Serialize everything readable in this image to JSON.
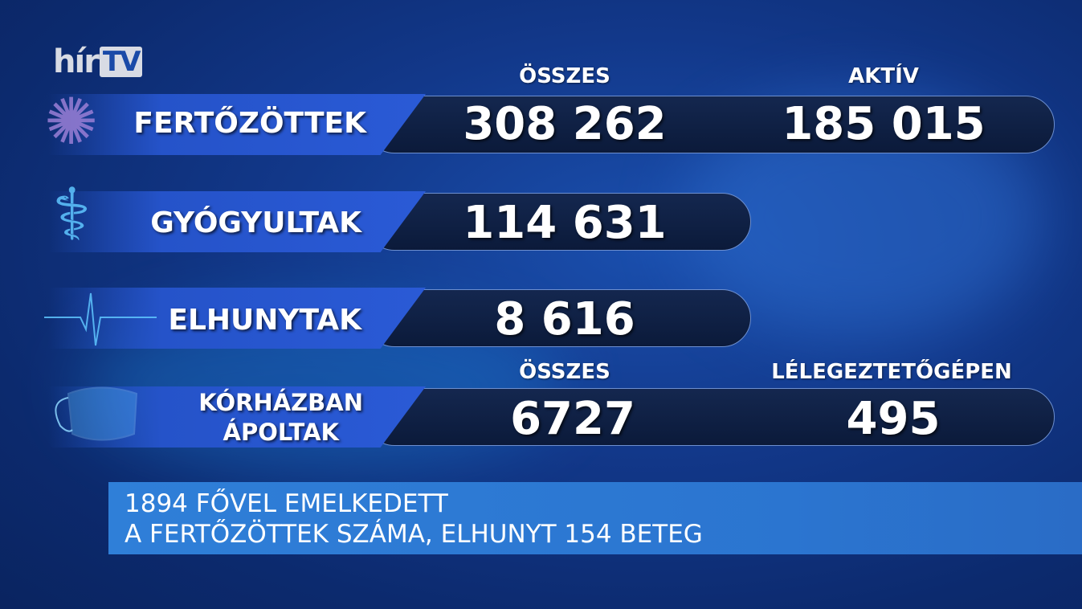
{
  "logo": {
    "text_main": "hír",
    "text_tv": "TV"
  },
  "headers": {
    "top_total": "ÖSSZES",
    "top_active": "AKTÍV",
    "bottom_total": "ÖSSZES",
    "bottom_ventilator": "LÉLEGEZTETŐGÉPEN"
  },
  "rows": [
    {
      "label": "FERTŐZÖTTEK",
      "icon": "virus-icon",
      "values": [
        "308 262",
        "185 015"
      ]
    },
    {
      "label": "GYÓGYULTAK",
      "icon": "caduceus-icon",
      "values": [
        "114 631"
      ]
    },
    {
      "label": "ELHUNYTAK",
      "icon": "heartbeat-icon",
      "values": [
        "8 616"
      ]
    },
    {
      "label_line1": "KÓRHÁZBAN",
      "label_line2": "ÁPOLTAK",
      "icon": "face-mask-icon",
      "values": [
        "6727",
        "495"
      ]
    }
  ],
  "banner": {
    "line1": "1894 FŐVEL EMELKEDETT",
    "line2": "A FERTŐZÖTTEK SZÁMA, ELHUNYT 154 BETEG"
  },
  "colors": {
    "band": "#2a5ad6",
    "pill": "#0b1a3a",
    "banner": "#2f7fd8",
    "icon": "#5fc6ff"
  }
}
